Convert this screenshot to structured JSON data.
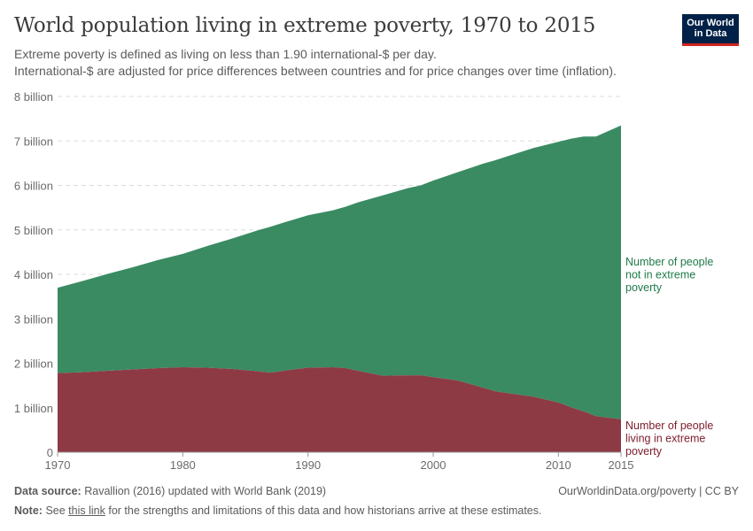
{
  "title": "World population living in extreme poverty, 1970 to 2015",
  "subtitle_line1": "Extreme poverty is defined as living on less than 1.90 international-$ per day.",
  "subtitle_line2": "International-$ are adjusted for price differences between countries and for price changes over time (inflation).",
  "logo": {
    "line1": "Our World",
    "line2": "in Data"
  },
  "footer": {
    "source_label": "Data source:",
    "source_text": "Ravallion (2016) updated with World Bank (2019)",
    "right_text": "OurWorldinData.org/poverty | CC BY",
    "note_label": "Note:",
    "note_pre": "See",
    "note_link": "this link",
    "note_post": "for the strengths and limitations of this data and how historians arrive at these estimates."
  },
  "colors": {
    "not_poverty": "#3a8b62",
    "poverty": "#8d3a45",
    "not_poverty_label": "#1e7a48",
    "poverty_label": "#7c1b2b",
    "grid": "#dddddd"
  },
  "chart_data": {
    "type": "area",
    "stacked": true,
    "xlim": [
      1970,
      2015
    ],
    "ylim": [
      0,
      8
    ],
    "yunit": "billion",
    "ytick_labels": [
      "0",
      "1 billion",
      "2 billion",
      "3 billion",
      "4 billion",
      "5 billion",
      "6 billion",
      "7 billion",
      "8 billion"
    ],
    "ytick_values": [
      0,
      1,
      2,
      3,
      4,
      5,
      6,
      7,
      8
    ],
    "xtick_labels": [
      "1970",
      "1980",
      "1990",
      "2000",
      "2010",
      "2015"
    ],
    "xtick_values": [
      1970,
      1980,
      1990,
      2000,
      2010,
      2015
    ],
    "x": [
      1970,
      1972,
      1974,
      1976,
      1978,
      1980,
      1982,
      1984,
      1986,
      1987,
      1988,
      1990,
      1992,
      1993,
      1994,
      1996,
      1998,
      1999,
      2000,
      2002,
      2004,
      2005,
      2006,
      2008,
      2010,
      2011,
      2012,
      2013,
      2015
    ],
    "series": [
      {
        "name": "Number of people living in extreme poverty",
        "label_lines": [
          "Number of people",
          "living in extreme",
          "poverty"
        ],
        "values": [
          1.78,
          1.8,
          1.83,
          1.86,
          1.89,
          1.91,
          1.9,
          1.87,
          1.82,
          1.79,
          1.83,
          1.9,
          1.91,
          1.89,
          1.83,
          1.72,
          1.73,
          1.73,
          1.69,
          1.61,
          1.45,
          1.37,
          1.33,
          1.25,
          1.12,
          1.01,
          0.92,
          0.81,
          0.74
        ]
      },
      {
        "name": "Number of people not in extreme poverty",
        "label_lines": [
          "Number of people",
          "not in extreme",
          "poverty"
        ],
        "values": [
          1.92,
          2.05,
          2.18,
          2.3,
          2.43,
          2.55,
          2.74,
          2.94,
          3.17,
          3.28,
          3.33,
          3.43,
          3.53,
          3.63,
          3.79,
          4.06,
          4.21,
          4.27,
          4.42,
          4.69,
          5.04,
          5.2,
          5.33,
          5.59,
          5.86,
          6.04,
          6.18,
          6.29,
          6.61
        ]
      }
    ]
  }
}
